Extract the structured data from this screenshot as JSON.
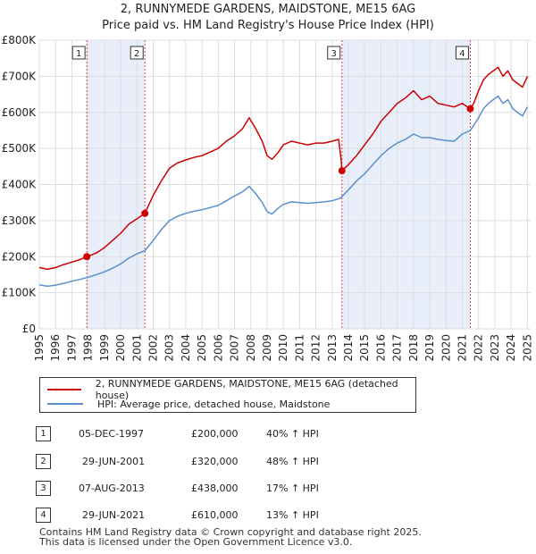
{
  "chart_data": {
    "type": "line",
    "title": "2, RUNNYMEDE GARDENS, MAIDSTONE, ME15 6AG",
    "subtitle": "Price paid vs. HM Land Registry's House Price Index (HPI)",
    "xlim": [
      1995,
      2025.2
    ],
    "ylim": [
      0,
      800000
    ],
    "x_ticks": [
      "1995",
      "1996",
      "1997",
      "1998",
      "1999",
      "2000",
      "2001",
      "2002",
      "2003",
      "2004",
      "2005",
      "2006",
      "2007",
      "2008",
      "2009",
      "2010",
      "2011",
      "2012",
      "2013",
      "2014",
      "2015",
      "2016",
      "2017",
      "2018",
      "2019",
      "2020",
      "2021",
      "2022",
      "2023",
      "2024",
      "2025"
    ],
    "y_ticks": [
      {
        "value": 0,
        "label": "£0"
      },
      {
        "value": 100000,
        "label": "£100K"
      },
      {
        "value": 200000,
        "label": "£200K"
      },
      {
        "value": 300000,
        "label": "£300K"
      },
      {
        "value": 400000,
        "label": "£400K"
      },
      {
        "value": 500000,
        "label": "£500K"
      },
      {
        "value": 600000,
        "label": "£600K"
      },
      {
        "value": 700000,
        "label": "£700K"
      },
      {
        "value": 800000,
        "label": "£800K"
      }
    ],
    "shaded_periods": [
      [
        1997.92,
        2001.49
      ],
      [
        2013.6,
        2021.49
      ]
    ],
    "series": [
      {
        "name": "2, RUNNYMEDE GARDENS, MAIDSTONE, ME15 6AG (detached house)",
        "color": "#cc0000",
        "x": [
          1995.0,
          1995.5,
          1996.0,
          1996.5,
          1997.0,
          1997.5,
          1997.92,
          1998.5,
          1999.0,
          1999.5,
          2000.0,
          2000.5,
          2001.0,
          2001.49,
          2002.0,
          2002.5,
          2003.0,
          2003.5,
          2004.0,
          2004.5,
          2005.0,
          2005.5,
          2006.0,
          2006.5,
          2007.0,
          2007.5,
          2007.9,
          2008.3,
          2008.7,
          2009.0,
          2009.3,
          2009.7,
          2010.0,
          2010.5,
          2011.0,
          2011.5,
          2012.0,
          2012.5,
          2013.0,
          2013.4,
          2013.55,
          2013.6,
          2014.0,
          2014.5,
          2015.0,
          2015.5,
          2016.0,
          2016.5,
          2017.0,
          2017.5,
          2018.0,
          2018.5,
          2019.0,
          2019.5,
          2020.0,
          2020.5,
          2021.0,
          2021.49,
          2021.7,
          2022.0,
          2022.3,
          2022.6,
          2022.9,
          2023.2,
          2023.5,
          2023.8,
          2024.1,
          2024.4,
          2024.7,
          2025.0
        ],
        "values": [
          170000,
          165000,
          170000,
          178000,
          185000,
          192000,
          200000,
          210000,
          225000,
          245000,
          265000,
          290000,
          305000,
          320000,
          370000,
          410000,
          445000,
          460000,
          468000,
          475000,
          480000,
          490000,
          500000,
          520000,
          535000,
          555000,
          585000,
          555000,
          520000,
          480000,
          470000,
          490000,
          510000,
          520000,
          515000,
          510000,
          515000,
          515000,
          520000,
          525000,
          470000,
          438000,
          455000,
          480000,
          510000,
          540000,
          575000,
          600000,
          625000,
          640000,
          660000,
          635000,
          645000,
          625000,
          620000,
          615000,
          625000,
          610000,
          625000,
          660000,
          690000,
          705000,
          715000,
          725000,
          700000,
          715000,
          690000,
          680000,
          670000,
          700000
        ]
      },
      {
        "name": "HPI: Average price, detached house, Maidstone",
        "color": "#5b8fcc",
        "x": [
          1995.0,
          1995.5,
          1996.0,
          1996.5,
          1997.0,
          1997.5,
          1998.0,
          1998.5,
          1999.0,
          1999.5,
          2000.0,
          2000.5,
          2001.0,
          2001.5,
          2002.0,
          2002.5,
          2003.0,
          2003.5,
          2004.0,
          2004.5,
          2005.0,
          2005.5,
          2006.0,
          2006.5,
          2007.0,
          2007.5,
          2007.9,
          2008.3,
          2008.7,
          2009.0,
          2009.3,
          2009.7,
          2010.0,
          2010.5,
          2011.0,
          2011.5,
          2012.0,
          2012.5,
          2013.0,
          2013.5,
          2014.0,
          2014.5,
          2015.0,
          2015.5,
          2016.0,
          2016.5,
          2017.0,
          2017.5,
          2018.0,
          2018.5,
          2019.0,
          2019.5,
          2020.0,
          2020.5,
          2021.0,
          2021.5,
          2022.0,
          2022.3,
          2022.6,
          2022.9,
          2023.2,
          2023.5,
          2023.8,
          2024.1,
          2024.4,
          2024.7,
          2025.0
        ],
        "values": [
          122000,
          118000,
          121000,
          126000,
          132000,
          137000,
          143000,
          150000,
          158000,
          168000,
          180000,
          196000,
          208000,
          217000,
          245000,
          275000,
          300000,
          312000,
          320000,
          326000,
          330000,
          336000,
          342000,
          355000,
          368000,
          380000,
          395000,
          375000,
          350000,
          325000,
          318000,
          335000,
          345000,
          352000,
          350000,
          348000,
          350000,
          352000,
          355000,
          362000,
          385000,
          410000,
          430000,
          455000,
          480000,
          500000,
          515000,
          525000,
          540000,
          530000,
          530000,
          525000,
          522000,
          520000,
          540000,
          550000,
          585000,
          610000,
          625000,
          635000,
          645000,
          625000,
          635000,
          610000,
          600000,
          590000,
          615000
        ]
      }
    ],
    "transactions": [
      {
        "id": "1",
        "date": "05-DEC-1997",
        "price": "£200,000",
        "hpi_change": "40% ↑ HPI",
        "x": 1997.92,
        "value": 200000
      },
      {
        "id": "2",
        "date": "29-JUN-2001",
        "price": "£320,000",
        "hpi_change": "48% ↑ HPI",
        "x": 2001.49,
        "value": 320000
      },
      {
        "id": "3",
        "date": "07-AUG-2013",
        "price": "£438,000",
        "hpi_change": "17% ↑ HPI",
        "x": 2013.6,
        "value": 438000
      },
      {
        "id": "4",
        "date": "29-JUN-2021",
        "price": "£610,000",
        "hpi_change": "13% ↑ HPI",
        "x": 2021.49,
        "value": 610000
      }
    ]
  },
  "legend": {
    "property_label": "2, RUNNYMEDE GARDENS, MAIDSTONE, ME15 6AG (detached house)",
    "hpi_label": "HPI: Average price, detached house, Maidstone"
  },
  "footer": {
    "line1": "Contains HM Land Registry data © Crown copyright and database right 2025.",
    "line2": "This data is licensed under the Open Government Licence v3.0."
  },
  "colors": {
    "property": "#cc0000",
    "hpi": "#5b8fcc",
    "shade": "#e8eefa",
    "grid": "#dddddd",
    "dashed": "#dd4444"
  }
}
